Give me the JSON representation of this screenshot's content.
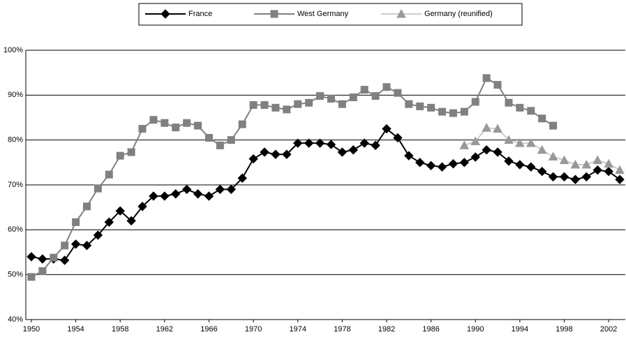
{
  "chart_data": {
    "type": "line",
    "x": [
      1950,
      1951,
      1952,
      1953,
      1954,
      1955,
      1956,
      1957,
      1958,
      1959,
      1960,
      1961,
      1962,
      1963,
      1964,
      1965,
      1966,
      1967,
      1968,
      1969,
      1970,
      1971,
      1972,
      1973,
      1974,
      1975,
      1976,
      1977,
      1978,
      1979,
      1980,
      1981,
      1982,
      1983,
      1984,
      1985,
      1986,
      1987,
      1988,
      1989,
      1990,
      1991,
      1992,
      1993,
      1994,
      1995,
      1996,
      1997,
      1998,
      1999,
      2000,
      2001,
      2002,
      2003
    ],
    "series": [
      {
        "name": "France",
        "color": "#000000",
        "marker": "diamond",
        "values": [
          54,
          53.5,
          53.5,
          53.2,
          56.8,
          56.5,
          58.8,
          61.7,
          64.2,
          62,
          65.2,
          67.5,
          67.5,
          68,
          69,
          68,
          67.5,
          69,
          69,
          71.5,
          75.8,
          77.3,
          76.8,
          76.8,
          79.3,
          79.3,
          79.3,
          79,
          77.3,
          77.8,
          79.3,
          78.8,
          82.5,
          80.5,
          76.5,
          75,
          74.3,
          74,
          74.7,
          75,
          76.2,
          77.8,
          77.3,
          75.3,
          74.5,
          74,
          73,
          71.8,
          71.8,
          71.2,
          71.8,
          73.3,
          73,
          71.2
        ]
      },
      {
        "name": "West Germany",
        "color": "#808080",
        "marker": "square",
        "values": [
          49.5,
          50.8,
          53.8,
          56.5,
          61.7,
          65.2,
          69.2,
          72.3,
          76.5,
          77.3,
          82.5,
          84.5,
          83.8,
          82.8,
          83.8,
          83.2,
          80.5,
          78.8,
          80,
          83.5,
          87.8,
          87.8,
          87.2,
          86.8,
          88,
          88.3,
          89.8,
          89.2,
          88,
          89.5,
          91.2,
          89.8,
          91.8,
          90.5,
          88,
          87.5,
          87.2,
          86.3,
          86,
          86.3,
          88.5,
          93.8,
          92.3,
          88.3,
          87.2,
          86.5,
          84.8,
          83.2,
          null,
          null,
          null,
          null,
          null,
          null
        ]
      },
      {
        "name": "Germany (reunified)",
        "color": "#999999",
        "marker": "triangle",
        "values": [
          null,
          null,
          null,
          null,
          null,
          null,
          null,
          null,
          null,
          null,
          null,
          null,
          null,
          null,
          null,
          null,
          null,
          null,
          null,
          null,
          null,
          null,
          null,
          null,
          null,
          null,
          null,
          null,
          null,
          null,
          null,
          null,
          null,
          null,
          null,
          null,
          null,
          null,
          null,
          78.8,
          79.7,
          82.7,
          82.5,
          80,
          79.3,
          79.3,
          77.8,
          76.3,
          75.5,
          74.5,
          74.5,
          75.5,
          74.7,
          73.3
        ]
      }
    ],
    "xlim": [
      1949.5,
      2003.5
    ],
    "xticks": [
      1950,
      1954,
      1958,
      1962,
      1966,
      1970,
      1974,
      1978,
      1982,
      1986,
      1990,
      1994,
      1998,
      2002
    ],
    "ylim": [
      40,
      100
    ],
    "yticks": [
      {
        "value": 40,
        "label": "40%"
      },
      {
        "value": 50,
        "label": "50%"
      },
      {
        "value": 60,
        "label": "60%"
      },
      {
        "value": 70,
        "label": "70%"
      },
      {
        "value": 80,
        "label": "80%"
      },
      {
        "value": 90,
        "label": "90%"
      },
      {
        "value": 100,
        "label": "100%"
      }
    ],
    "grid": true,
    "legend": "top"
  }
}
